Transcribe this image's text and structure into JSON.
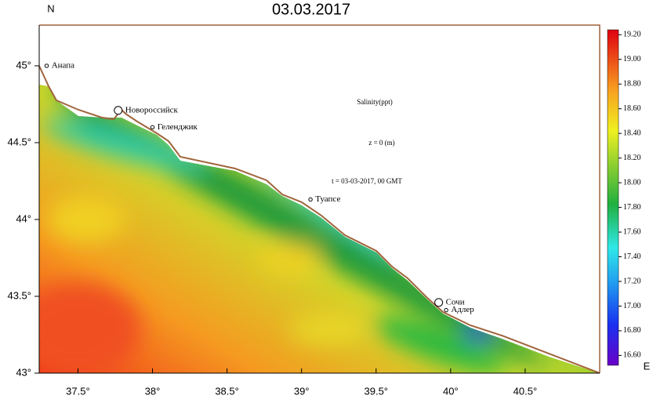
{
  "header": {
    "north": "N",
    "title": "03.03.2017",
    "east": "E"
  },
  "map": {
    "xlim": [
      37.24,
      41.0
    ],
    "ylim": [
      43,
      45.265
    ],
    "xticks": [
      {
        "value": 37.5,
        "label": "37.5°"
      },
      {
        "value": 38,
        "label": "38°"
      },
      {
        "value": 38.5,
        "label": "38.5°"
      },
      {
        "value": 39,
        "label": "39°"
      },
      {
        "value": 39.5,
        "label": "39.5°"
      },
      {
        "value": 40,
        "label": "40°"
      },
      {
        "value": 40.5,
        "label": "40.5°"
      }
    ],
    "yticks": [
      {
        "value": 43,
        "label": "43°"
      },
      {
        "value": 43.5,
        "label": "43.5°"
      },
      {
        "value": 44,
        "label": "44°"
      },
      {
        "value": 44.5,
        "label": "44.5°"
      },
      {
        "value": 45,
        "label": "45°"
      }
    ],
    "annotations": [
      "Salinity(ppt)",
      "z = 0 (m)",
      "t = 03-03-2017, 00 GMT"
    ],
    "cities": [
      {
        "name": "Анапа",
        "lon": 37.29,
        "lat": 45.0
      },
      {
        "name": "Новороссийск",
        "lon": 37.77,
        "lat": 44.71
      },
      {
        "name": "Геленджик",
        "lon": 38.0,
        "lat": 44.6
      },
      {
        "name": "Туапсе",
        "lon": 39.06,
        "lat": 44.13
      },
      {
        "name": "Сочи",
        "lon": 39.92,
        "lat": 43.46
      },
      {
        "name": "Адлер",
        "lon": 39.97,
        "lat": 43.41
      }
    ]
  },
  "colorbar": {
    "lim": [
      16.52,
      19.24
    ],
    "ticks": [
      {
        "value": 16.6,
        "label": "16.60"
      },
      {
        "value": 16.8,
        "label": "16.80"
      },
      {
        "value": 17.0,
        "label": "17.00"
      },
      {
        "value": 17.2,
        "label": "17.20"
      },
      {
        "value": 17.4,
        "label": "17.40"
      },
      {
        "value": 17.6,
        "label": "17.60"
      },
      {
        "value": 17.8,
        "label": "17.80"
      },
      {
        "value": 18.0,
        "label": "18.00"
      },
      {
        "value": 18.2,
        "label": "18.20"
      },
      {
        "value": 18.4,
        "label": "18.40"
      },
      {
        "value": 18.6,
        "label": "18.60"
      },
      {
        "value": 18.8,
        "label": "18.80"
      },
      {
        "value": 19.0,
        "label": "19.00"
      },
      {
        "value": 19.2,
        "label": "19.20"
      }
    ]
  }
}
